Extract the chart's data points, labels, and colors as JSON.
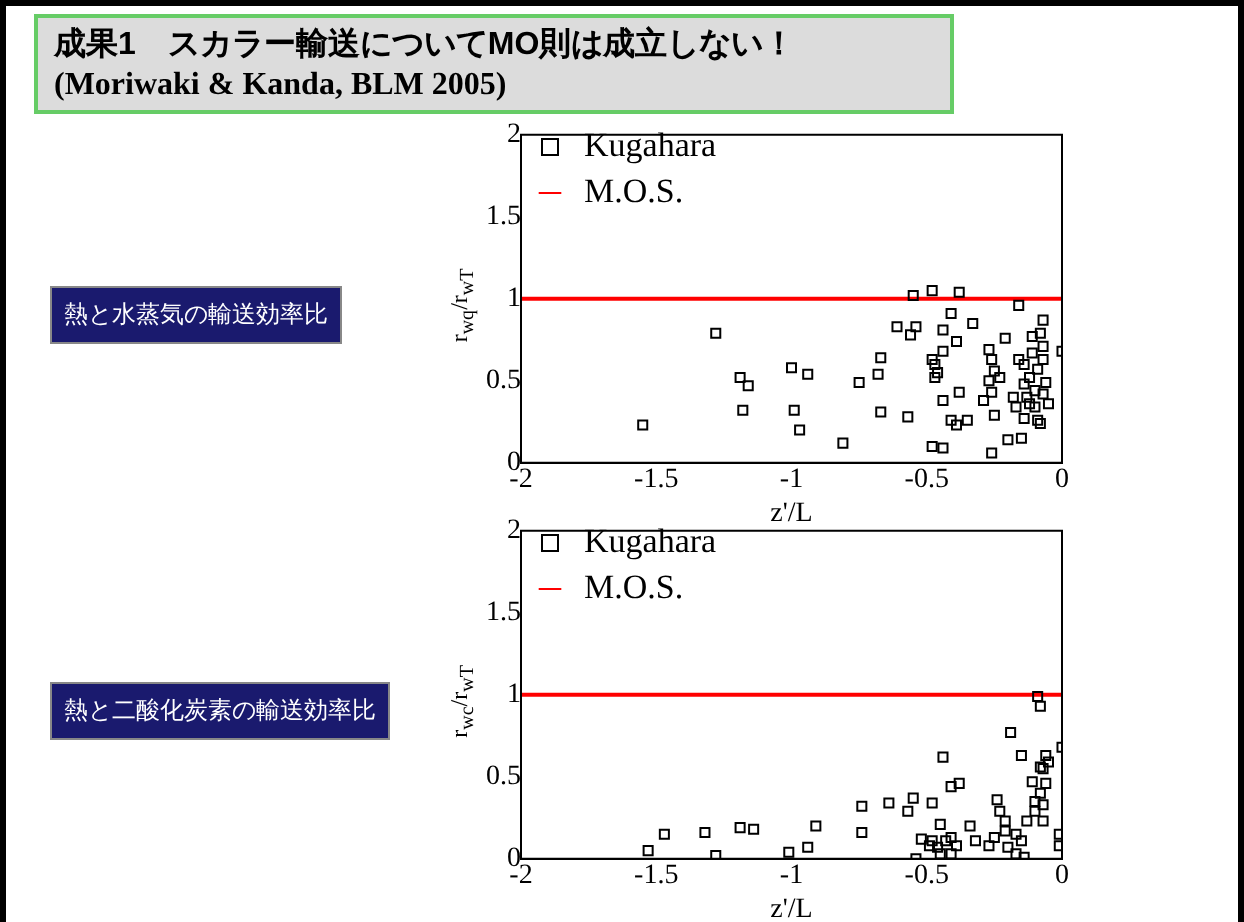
{
  "chart_data": [
    {
      "type": "scatter",
      "title": "成果1　スカラー輸送についてMO則は成立しない！",
      "subtitle": "(Moriwaki & Kanda, BLM 2005)",
      "annotations": [
        "熱と水蒸気の輸送効率比"
      ],
      "xlabel": "z'/L",
      "ylabel": "r$_{wq}$/r$_{wT}$",
      "xlim": [
        -2,
        0
      ],
      "ylim": [
        0,
        2
      ],
      "xticks": [
        -2,
        -1.5,
        -1,
        -0.5,
        0
      ],
      "yticks": [
        0,
        0.5,
        1,
        1.5,
        2
      ],
      "grid": false,
      "legend": "top left",
      "marker": "square",
      "series": [
        {
          "name": "Kugahara",
          "color": "#000000",
          "x": [
            -1.55,
            -1.28,
            -1.19,
            -1.16,
            -1.18,
            -1.0,
            -0.94,
            -0.99,
            -0.97,
            -0.81,
            -0.75,
            -0.67,
            -0.68,
            -0.67,
            -0.57,
            -0.55,
            -0.48,
            -0.38,
            -0.61,
            -0.54,
            -0.56,
            -0.48,
            -0.47,
            -0.46,
            -0.47,
            -0.44,
            -0.44,
            -0.41,
            -0.39,
            -0.44,
            -0.38,
            -0.48,
            -0.44,
            -0.41,
            -0.39,
            -0.35,
            -0.33,
            -0.27,
            -0.26,
            -0.25,
            -0.27,
            -0.29,
            -0.26,
            -0.23,
            -0.21,
            -0.25,
            -0.26,
            -0.2,
            -0.16,
            -0.18,
            -0.17,
            -0.15,
            -0.14,
            -0.14,
            -0.14,
            -0.12,
            -0.11,
            -0.11,
            -0.1,
            -0.1,
            -0.09,
            -0.09,
            -0.08,
            -0.07,
            -0.07,
            -0.07,
            -0.06,
            -0.05,
            -0.08,
            -0.07,
            0.0,
            -0.13,
            -0.16,
            -0.12
          ],
          "values": [
            0.23,
            0.79,
            0.52,
            0.47,
            0.32,
            0.58,
            0.54,
            0.32,
            0.2,
            0.12,
            0.49,
            0.64,
            0.54,
            0.31,
            0.28,
            1.02,
            1.05,
            1.04,
            0.83,
            0.83,
            0.78,
            0.63,
            0.6,
            0.55,
            0.52,
            0.68,
            0.81,
            0.91,
            0.74,
            0.38,
            0.43,
            0.1,
            0.09,
            0.26,
            0.23,
            0.26,
            0.85,
            0.69,
            0.63,
            0.56,
            0.5,
            0.38,
            0.43,
            0.52,
            0.76,
            0.29,
            0.06,
            0.14,
            0.96,
            0.4,
            0.34,
            0.15,
            0.27,
            0.48,
            0.6,
            0.52,
            0.77,
            0.67,
            0.44,
            0.34,
            0.26,
            0.57,
            0.79,
            0.71,
            0.87,
            0.63,
            0.49,
            0.36,
            0.24,
            0.42,
            0.68,
            0.4,
            0.63,
            0.36
          ]
        },
        {
          "name": "M.O.S.",
          "type": "line",
          "color": "#ff0000",
          "marker": "none",
          "x": [
            -2,
            0
          ],
          "values": [
            1,
            1
          ]
        }
      ]
    },
    {
      "type": "scatter",
      "annotations": [
        "熱と二酸化炭素の輸送効率比"
      ],
      "xlabel": "z'/L",
      "ylabel": "r$_{wc}$/r$_{wT}$",
      "xlim": [
        -2,
        0
      ],
      "ylim": [
        0,
        2
      ],
      "xticks": [
        -2,
        -1.5,
        -1,
        -0.5,
        0
      ],
      "yticks": [
        0,
        0.5,
        1,
        1.5,
        2
      ],
      "grid": false,
      "legend": "top left",
      "marker": "square",
      "series": [
        {
          "name": "Kugahara",
          "color": "#000000",
          "x": [
            -1.53,
            -1.47,
            -1.32,
            -1.28,
            -1.19,
            -1.14,
            -1.01,
            -0.94,
            -0.91,
            -0.74,
            -0.74,
            -0.64,
            -0.57,
            -0.55,
            -0.48,
            -0.44,
            -0.41,
            -0.38,
            -0.54,
            -0.52,
            -0.49,
            -0.48,
            -0.46,
            -0.45,
            -0.45,
            -0.43,
            -0.41,
            -0.39,
            -0.41,
            -0.34,
            -0.32,
            -0.27,
            -0.25,
            -0.24,
            -0.23,
            -0.21,
            -0.21,
            -0.19,
            -0.2,
            -0.17,
            -0.17,
            -0.15,
            -0.15,
            -0.14,
            -0.13,
            -0.11,
            -0.1,
            -0.1,
            -0.09,
            -0.08,
            -0.08,
            -0.08,
            -0.07,
            -0.07,
            -0.06,
            -0.06,
            -0.05,
            -0.07,
            0.0,
            -0.01,
            -0.01
          ],
          "values": [
            0.05,
            0.15,
            0.16,
            0.02,
            0.19,
            0.18,
            0.04,
            0.07,
            0.2,
            0.16,
            0.32,
            0.34,
            0.29,
            0.37,
            0.34,
            0.62,
            0.44,
            0.46,
            0.0,
            0.12,
            0.08,
            0.11,
            0.07,
            0.21,
            0.03,
            0.11,
            0.13,
            0.08,
            0.03,
            0.2,
            0.11,
            0.08,
            0.13,
            0.36,
            0.29,
            0.23,
            0.17,
            0.77,
            0.07,
            0.15,
            0.03,
            0.11,
            0.63,
            0.01,
            0.23,
            0.47,
            0.35,
            0.29,
            0.99,
            0.93,
            0.56,
            0.4,
            0.23,
            0.33,
            0.46,
            0.63,
            0.59,
            0.55,
            0.68,
            0.15,
            0.08
          ]
        },
        {
          "name": "M.O.S.",
          "type": "line",
          "color": "#ff0000",
          "marker": "none",
          "x": [
            -2,
            0
          ],
          "values": [
            1,
            1
          ]
        }
      ]
    }
  ]
}
